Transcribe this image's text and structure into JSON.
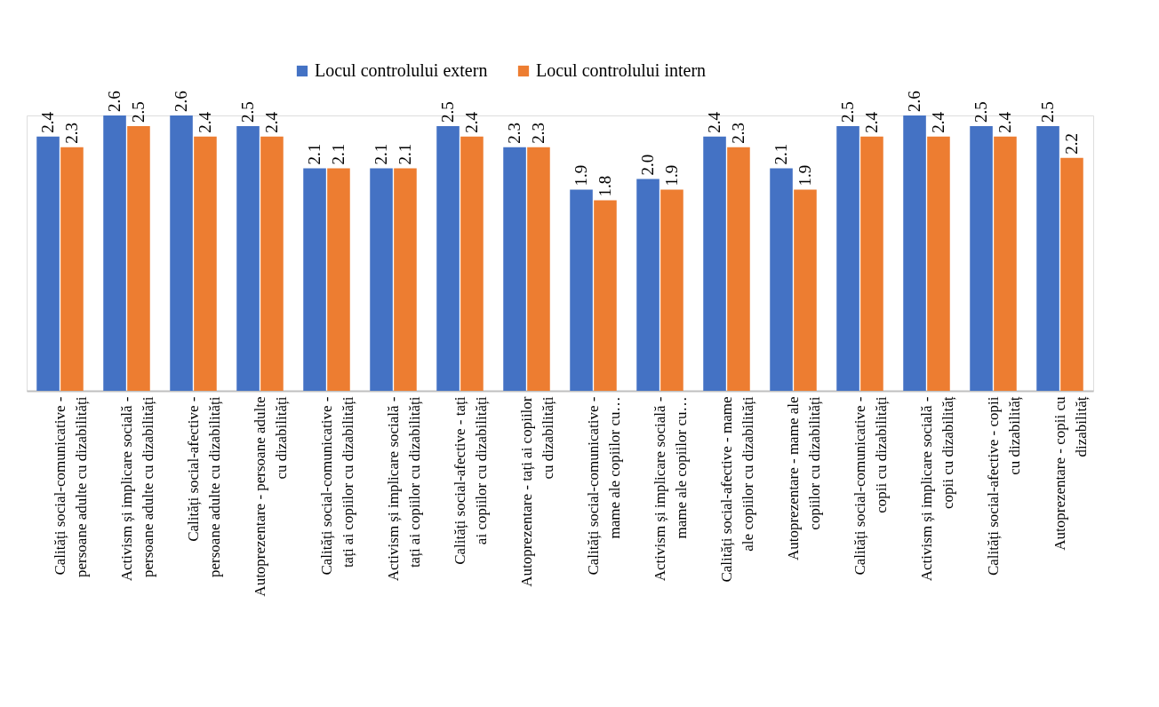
{
  "chart_data": {
    "type": "bar",
    "legend": "top",
    "categories": [
      "Calități social-comunicative - persoane adulte cu dizabilități",
      "Activism și implicare socială - persoane adulte cu dizabilități",
      "Calități social-afective - persoane adulte cu dizabilități",
      "Autoprezentare - persoane adulte cu dizabilități",
      "Calități social-comunicative - tați ai copiilor cu dizabilități",
      "Activism și implicare socială - tați ai copiilor cu dizabilități",
      "Calități social-afective - tați ai copiilor cu dizabilități",
      "Autoprezentare - tați ai copiilor cu dizabilități",
      "Calități social-comunicative - mame ale copiilor cu…",
      "Activism și implicare socială - mame ale copiilor cu…",
      "Calități social-afective - mame ale copiilor cu dizabilități",
      "Autoprezentare - mame ale copiilor cu dizabilități",
      "Calități social-comunicative - copii cu dizabilități",
      "Activism și implicare socială - copii cu dizabilităț",
      "Calități social-afective - copii cu dizabilităț",
      "Autoprezentare - copii cu dizabilităț"
    ],
    "series": [
      {
        "name": "Locul controlului extern",
        "color": "#4472c4",
        "values": [
          2.4,
          2.6,
          2.6,
          2.5,
          2.1,
          2.1,
          2.5,
          2.3,
          1.9,
          2.0,
          2.4,
          2.1,
          2.5,
          2.6,
          2.5,
          2.5
        ],
        "value_labels": [
          "2.4",
          "2.6",
          "2.6",
          "2.5",
          "2.1",
          "2.1",
          "2.5",
          "2.3",
          "1.9",
          "2.0",
          "2.4",
          "2.1",
          "2.5",
          "2.6",
          "2.5",
          "2.5"
        ]
      },
      {
        "name": "Locul controlului intern",
        "color": "#ed7d31",
        "values": [
          2.3,
          2.5,
          2.4,
          2.4,
          2.1,
          2.1,
          2.4,
          2.3,
          1.8,
          1.9,
          2.3,
          1.9,
          2.4,
          2.4,
          2.4,
          2.2
        ],
        "value_labels": [
          "2.3",
          "2.5",
          "2.4",
          "2.4",
          "2.1",
          "2.1",
          "2.4",
          "2.3",
          "1.8",
          "1.9",
          "2.3",
          "1.9",
          "2.4",
          "2.4",
          "2.4",
          "2.2"
        ]
      }
    ]
  }
}
